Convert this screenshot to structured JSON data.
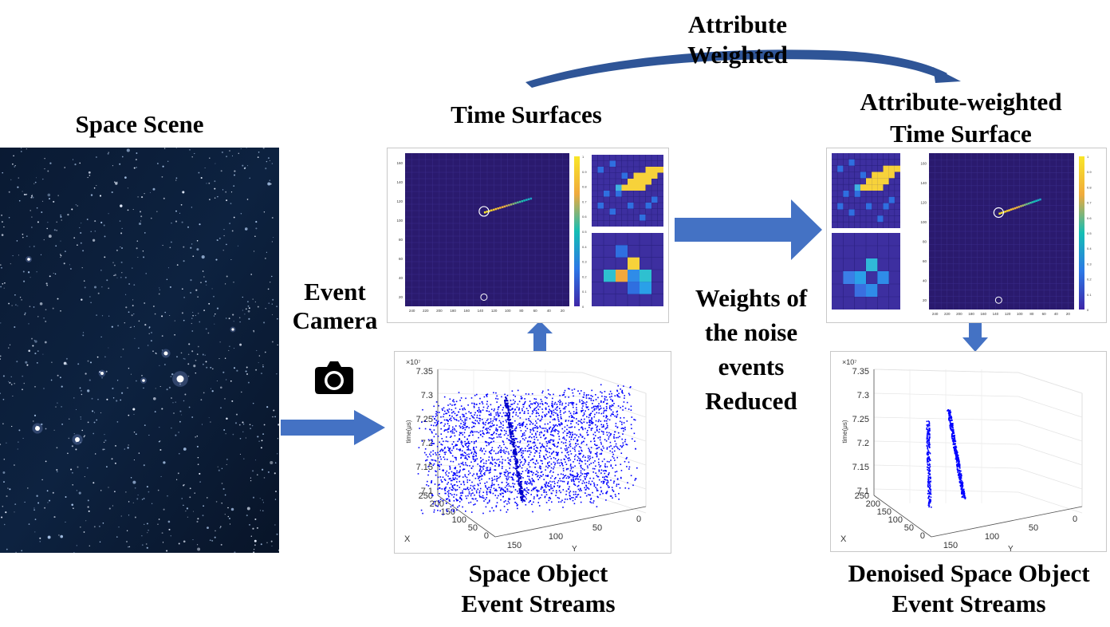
{
  "labels": {
    "space_scene": "Space Scene",
    "time_surfaces": "Time Surfaces",
    "attribute_weighted_1": "Attribute",
    "attribute_weighted_2": "Weighted",
    "aw_time_surface_1": "Attribute-weighted",
    "aw_time_surface_2": "Time Surface",
    "event_camera_1": "Event",
    "event_camera_2": "Camera",
    "weights_1": "Weights of",
    "weights_2": "the noise",
    "weights_3": "events",
    "weights_4": "Reduced",
    "space_object_1": "Space Object",
    "space_object_2": "Event Streams",
    "denoised_1": "Denoised Space Object",
    "denoised_2": "Event Streams"
  },
  "time_surface_plot": {
    "y_ticks": [
      "160",
      "140",
      "120",
      "100",
      "80",
      "60",
      "40",
      "20"
    ],
    "x_ticks": [
      "240",
      "220",
      "200",
      "180",
      "160",
      "140",
      "120",
      "100",
      "80",
      "60",
      "40",
      "20"
    ],
    "colorbar_ticks": [
      "1",
      "0.9",
      "0.8",
      "0.7",
      "0.6",
      "0.5",
      "0.4",
      "0.3",
      "0.2",
      "0.1",
      "0"
    ]
  },
  "stream_plot": {
    "exponent": "×10⁷",
    "z_ticks": [
      "7.35",
      "7.3",
      "7.25",
      "7.2",
      "7.15",
      "7.1"
    ],
    "z_label": "time(μs)",
    "x_ticks": [
      "250",
      "200",
      "150",
      "100",
      "50",
      "0"
    ],
    "x_label": "X",
    "y_ticks": [
      "150",
      "100",
      "50",
      "0"
    ],
    "y_label": "Y"
  },
  "colors": {
    "arrow": "#4472c4",
    "plot_bg": "#2a1a6e",
    "event_dots": "#0000ff",
    "heat_low": "#3d2fa0",
    "heat_high": "#f7d23a"
  }
}
